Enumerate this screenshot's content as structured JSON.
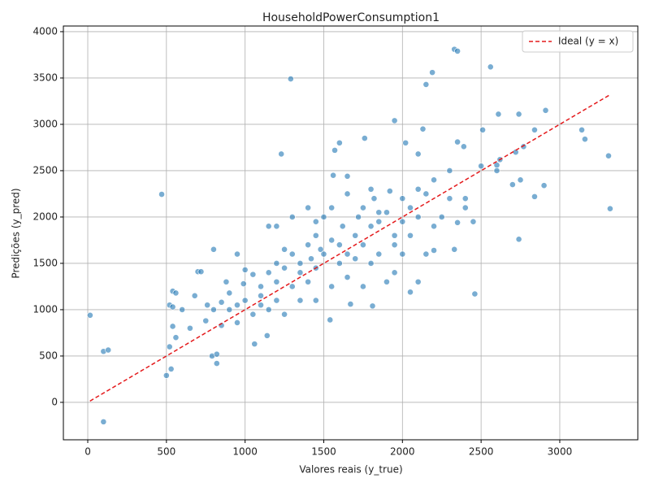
{
  "chart_data": {
    "type": "scatter",
    "title": "HouseholdPowerConsumption1",
    "x_label": "Valores reais (y_true)",
    "y_label": "Predições (y_pred)",
    "color": "#1f77b4",
    "x": [
      15,
      100,
      130,
      100,
      470,
      1290,
      1230,
      2330,
      2350,
      2560,
      2190,
      2150,
      1950,
      2130,
      2610,
      2740,
      2910,
      3140,
      3160,
      3310,
      3320,
      2840,
      2510,
      2460,
      2050,
      1810,
      1670,
      1540,
      1060,
      1140,
      820,
      790,
      820,
      500,
      530,
      2740,
      2840,
      2900,
      2770,
      2720,
      2600,
      2350,
      2390,
      2100,
      2020,
      1920,
      1760,
      1600,
      1570,
      1650,
      1560,
      1200,
      1150,
      800,
      950,
      700,
      720,
      540,
      560,
      520,
      540,
      600,
      680,
      760,
      850,
      880,
      900,
      990,
      1000,
      1050,
      1100,
      1150,
      1200,
      1250,
      1300,
      1350,
      1400,
      1420,
      1450,
      1480,
      1500,
      1550,
      1600,
      1620,
      1650,
      1700,
      1720,
      1750,
      1800,
      1820,
      1850,
      1900,
      1950,
      2000,
      2050,
      2100,
      2150,
      2200,
      2250,
      2300,
      2400,
      2500,
      2600,
      1950,
      1900,
      1750,
      1650,
      1550,
      1450,
      1350,
      1250,
      1150,
      1050,
      950,
      850,
      750,
      650,
      560,
      520,
      540,
      1300,
      1400,
      1500,
      1650,
      1800,
      1850,
      1950,
      2050,
      2150,
      2200,
      2350,
      2450,
      2330,
      2200,
      2100,
      1000,
      1100,
      1200,
      1300,
      1400,
      1450,
      1600,
      1700,
      1800,
      2000,
      900,
      800,
      950,
      1100,
      1200,
      1250,
      1350,
      1450,
      1550,
      1750,
      1850,
      2000,
      2100,
      2700,
      2750,
      2620,
      2300,
      2400
    ],
    "values": [
      940,
      550,
      565,
      -210,
      2245,
      3490,
      2680,
      3810,
      3790,
      3620,
      3560,
      3430,
      3040,
      2950,
      3110,
      3110,
      3150,
      2940,
      2840,
      2660,
      2090,
      2940,
      2940,
      1170,
      1190,
      1040,
      1060,
      890,
      630,
      720,
      420,
      500,
      520,
      290,
      360,
      1760,
      2220,
      2340,
      2760,
      2700,
      2560,
      2810,
      2760,
      2680,
      2800,
      2280,
      2850,
      2800,
      2720,
      2440,
      2450,
      1900,
      1900,
      1650,
      1600,
      1410,
      1410,
      1200,
      1180,
      1050,
      1030,
      1000,
      1150,
      1050,
      1080,
      1300,
      1180,
      1280,
      1430,
      1380,
      1250,
      1400,
      1300,
      1450,
      1600,
      1500,
      1700,
      1550,
      1800,
      1650,
      1600,
      1750,
      1700,
      1900,
      1600,
      1800,
      2000,
      1700,
      1900,
      2200,
      1950,
      2050,
      1800,
      2200,
      2100,
      2300,
      2250,
      2400,
      2000,
      2500,
      2100,
      2550,
      2500,
      1400,
      1300,
      1250,
      1350,
      1250,
      1100,
      1100,
      950,
      1000,
      950,
      860,
      830,
      880,
      800,
      700,
      600,
      820,
      2000,
      2100,
      2000,
      2250,
      2300,
      1600,
      1700,
      1800,
      1600,
      1900,
      1940,
      1950,
      1650,
      1640,
      1300,
      1100,
      1150,
      1100,
      1250,
      1300,
      1450,
      1500,
      1550,
      1500,
      1600,
      1000,
      1000,
      1050,
      1050,
      1500,
      1650,
      1400,
      1950,
      2100,
      2100,
      2050,
      1950,
      2000,
      2350,
      2400,
      2620,
      2200,
      2200
    ],
    "reference_line": {
      "name": "Ideal (y = x)",
      "color": "#e41a1c",
      "dashed": true,
      "x": [
        14,
        3313
      ],
      "values": [
        14,
        3313
      ]
    },
    "xlim": [
      -155,
      3496
    ],
    "ylim": [
      -404,
      4061
    ],
    "xticks": [
      0,
      500,
      1000,
      1500,
      2000,
      2500,
      3000
    ],
    "yticks": [
      0,
      500,
      1000,
      1500,
      2000,
      2500,
      3000,
      3500,
      4000
    ],
    "grid": true,
    "legend_position": "upper right"
  }
}
